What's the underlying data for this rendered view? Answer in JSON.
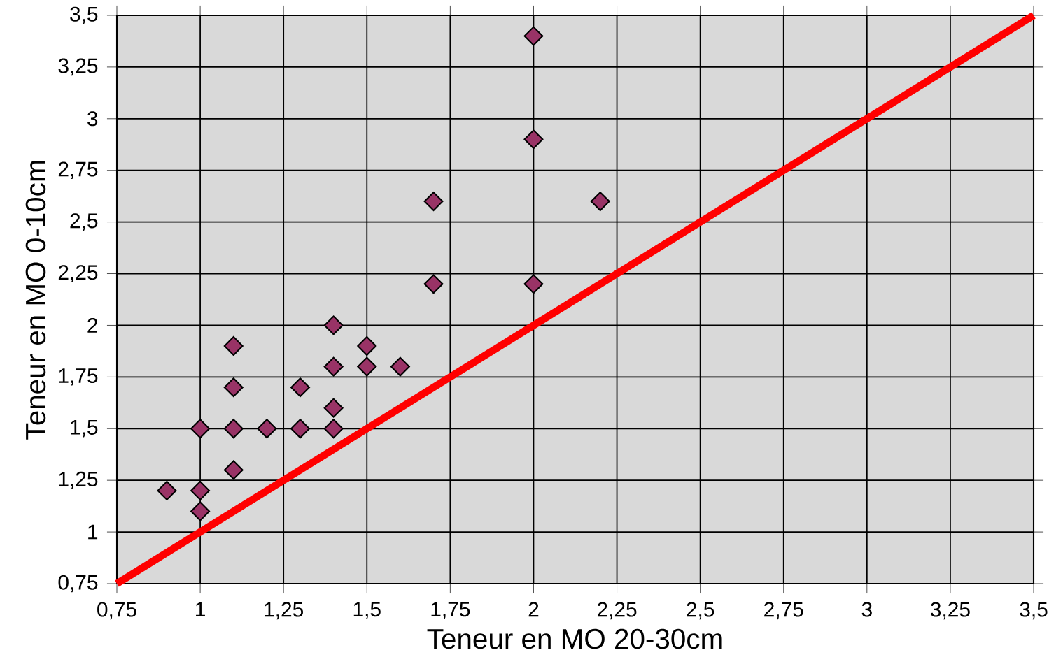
{
  "chart_data": {
    "type": "scatter",
    "xlabel": "Teneur en MO 20-30cm",
    "ylabel": "Teneur en MO 0-10cm",
    "xlim": [
      0.75,
      3.5
    ],
    "ylim": [
      0.75,
      3.5
    ],
    "xticks": [
      {
        "value": 0.75,
        "label": "0,75"
      },
      1,
      {
        "value": 1.25,
        "label": "1,25"
      },
      {
        "value": 1.5,
        "label": "1,5"
      },
      {
        "value": 1.75,
        "label": "1,75"
      },
      2,
      {
        "value": 2.25,
        "label": "2,25"
      },
      {
        "value": 2.5,
        "label": "2,5"
      },
      {
        "value": 2.75,
        "label": "2,75"
      },
      3,
      {
        "value": 3.25,
        "label": "3,25"
      },
      {
        "value": 3.5,
        "label": "3,5"
      }
    ],
    "yticks": [
      {
        "value": 0.75,
        "label": "0,75"
      },
      1,
      {
        "value": 1.25,
        "label": "1,25"
      },
      {
        "value": 1.5,
        "label": "1,5"
      },
      {
        "value": 1.75,
        "label": "1,75"
      },
      2,
      {
        "value": 2.25,
        "label": "2,25"
      },
      {
        "value": 2.5,
        "label": "2,5"
      },
      {
        "value": 2.75,
        "label": "2,75"
      },
      3,
      {
        "value": 3.25,
        "label": "3,25"
      },
      {
        "value": 3.5,
        "label": "3,5"
      }
    ],
    "grid": true,
    "series": [
      {
        "color": "#993366",
        "marker": "diamond",
        "x": [
          0.9,
          1,
          1,
          1,
          1.1,
          1.1,
          1.1,
          1.1,
          1.2,
          1.3,
          1.3,
          1.4,
          1.4,
          1.4,
          1.4,
          1.5,
          1.5,
          1.6,
          1.7,
          1.7,
          2,
          2,
          2,
          2.2
        ],
        "values": [
          1.2,
          1.5,
          1.2,
          1.1,
          1.9,
          1.7,
          1.5,
          1.3,
          1.5,
          1.7,
          1.5,
          2.0,
          1.8,
          1.6,
          1.5,
          1.9,
          1.8,
          1.8,
          2.6,
          2.2,
          3.4,
          2.9,
          2.2,
          2.6
        ]
      },
      {
        "type": "line",
        "color": "#ff0000",
        "x": [
          0.75,
          3.5
        ],
        "values": [
          0.75,
          3.5
        ]
      }
    ]
  }
}
